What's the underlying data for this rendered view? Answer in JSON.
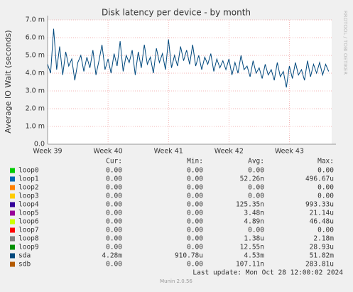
{
  "chart_data": {
    "type": "line",
    "title": "Disk latency per device - by month",
    "ylabel": "Average IO Wait (seconds)",
    "watermark": "RRDTOOL / TOBI OETIKER",
    "footer": "Munin 2.0.56",
    "last_update": "Last update: Mon Oct 28 12:00:02 2024",
    "table_headers": [
      "Cur:",
      "Min:",
      "Avg:",
      "Max:"
    ],
    "xlim": [
      39,
      43.7
    ],
    "xticks": [
      {
        "value": 39,
        "label": "Week 39"
      },
      {
        "value": 40,
        "label": "Week 40"
      },
      {
        "value": 41,
        "label": "Week 41"
      },
      {
        "value": 42,
        "label": "Week 42"
      },
      {
        "value": 43,
        "label": "Week 43"
      }
    ],
    "ylim": [
      0,
      7
    ],
    "yticks": [
      {
        "value": 0,
        "label": "0.0"
      },
      {
        "value": 1,
        "label": "1.0 m"
      },
      {
        "value": 2,
        "label": "2.0 m"
      },
      {
        "value": 3,
        "label": "3.0 m"
      },
      {
        "value": 4,
        "label": "4.0 m"
      },
      {
        "value": 5,
        "label": "5.0 m"
      },
      {
        "value": 6,
        "label": "6.0 m"
      },
      {
        "value": 7,
        "label": "7.0 m"
      }
    ],
    "grid": true,
    "x": [
      39,
      39.05,
      39.1,
      39.15,
      39.2,
      39.25,
      39.3,
      39.35,
      39.4,
      39.45,
      39.5,
      39.55,
      39.6,
      39.65,
      39.7,
      39.75,
      39.8,
      39.85,
      39.9,
      39.95,
      40,
      40.05,
      40.1,
      40.15,
      40.2,
      40.25,
      40.3,
      40.35,
      40.4,
      40.45,
      40.5,
      40.55,
      40.6,
      40.65,
      40.7,
      40.75,
      40.8,
      40.85,
      40.9,
      40.95,
      41,
      41.05,
      41.1,
      41.15,
      41.2,
      41.25,
      41.3,
      41.35,
      41.4,
      41.45,
      41.5,
      41.55,
      41.6,
      41.65,
      41.7,
      41.75,
      41.8,
      41.85,
      41.9,
      41.95,
      42,
      42.05,
      42.1,
      42.15,
      42.2,
      42.25,
      42.3,
      42.35,
      42.4,
      42.45,
      42.5,
      42.55,
      42.6,
      42.65,
      42.7,
      42.75,
      42.8,
      42.85,
      42.9,
      42.95,
      43,
      43.05,
      43.1,
      43.15,
      43.2,
      43.25,
      43.3,
      43.35,
      43.4,
      43.45,
      43.5,
      43.55,
      43.6,
      43.65
    ],
    "series": [
      {
        "name": "loop0",
        "color": "#00cc00",
        "cur": "0.00",
        "min": "0.00",
        "avg": "0.00",
        "max": "0.00"
      },
      {
        "name": "loop1",
        "color": "#0066b3",
        "cur": "0.00",
        "min": "0.00",
        "avg": "52.26n",
        "max": "496.67u"
      },
      {
        "name": "loop2",
        "color": "#ff8000",
        "cur": "0.00",
        "min": "0.00",
        "avg": "0.00",
        "max": "0.00"
      },
      {
        "name": "loop3",
        "color": "#ffcc00",
        "cur": "0.00",
        "min": "0.00",
        "avg": "0.00",
        "max": "0.00"
      },
      {
        "name": "loop4",
        "color": "#330099",
        "cur": "0.00",
        "min": "0.00",
        "avg": "125.35n",
        "max": "993.33u"
      },
      {
        "name": "loop5",
        "color": "#990099",
        "cur": "0.00",
        "min": "0.00",
        "avg": "3.48n",
        "max": "21.14u"
      },
      {
        "name": "loop6",
        "color": "#ccff00",
        "cur": "0.00",
        "min": "0.00",
        "avg": "4.89n",
        "max": "46.48u"
      },
      {
        "name": "loop7",
        "color": "#ff0000",
        "cur": "0.00",
        "min": "0.00",
        "avg": "0.00",
        "max": "0.00"
      },
      {
        "name": "loop8",
        "color": "#808080",
        "cur": "0.00",
        "min": "0.00",
        "avg": "1.38u",
        "max": "2.18m"
      },
      {
        "name": "loop9",
        "color": "#008f00",
        "cur": "0.00",
        "min": "0.00",
        "avg": "12.55n",
        "max": "28.93u"
      },
      {
        "name": "sda",
        "color": "#00487d",
        "cur": "4.28m",
        "min": "910.78u",
        "avg": "4.53m",
        "max": "51.82m",
        "values": [
          4.5,
          4.0,
          6.5,
          4.2,
          5.5,
          3.9,
          5.2,
          4.4,
          4.8,
          3.6,
          4.6,
          5.0,
          4.1,
          4.9,
          4.3,
          5.3,
          3.9,
          4.7,
          5.6,
          4.2,
          4.8,
          4.0,
          5.1,
          4.4,
          5.8,
          4.1,
          5.0,
          4.6,
          5.3,
          3.9,
          5.2,
          4.3,
          5.6,
          4.5,
          4.9,
          4.0,
          5.4,
          4.6,
          5.1,
          4.2,
          5.9,
          4.3,
          5.0,
          4.4,
          5.5,
          4.7,
          5.3,
          4.5,
          5.6,
          4.4,
          5.0,
          4.2,
          4.9,
          4.5,
          5.1,
          4.1,
          4.8,
          4.3,
          4.7,
          4.2,
          4.8,
          3.9,
          4.6,
          4.0,
          5.0,
          4.2,
          4.4,
          3.8,
          4.7,
          4.0,
          4.3,
          3.7,
          4.5,
          3.9,
          4.2,
          3.6,
          4.6,
          3.8,
          4.1,
          3.2,
          4.4,
          3.7,
          4.6,
          3.9,
          4.2,
          3.6,
          4.7,
          3.8,
          4.5,
          4.0,
          4.6,
          3.9,
          4.5,
          4.1
        ]
      },
      {
        "name": "sdb",
        "color": "#b35a00",
        "cur": "0.00",
        "min": "0.00",
        "avg": "107.11n",
        "max": "283.81u"
      }
    ]
  }
}
